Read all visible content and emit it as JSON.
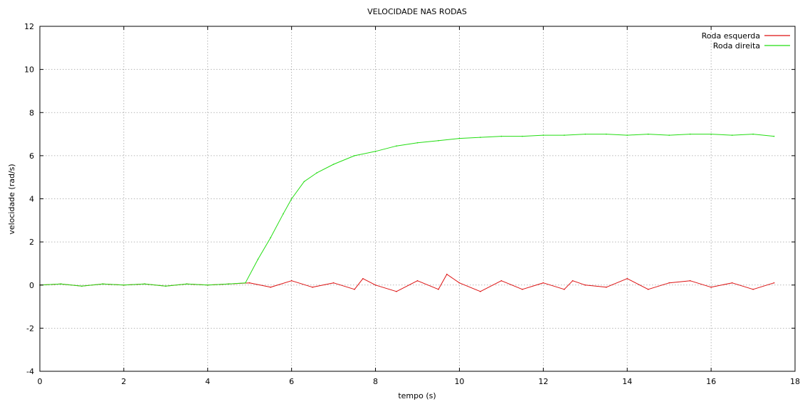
{
  "chart_data": {
    "type": "line",
    "title": "VELOCIDADE NAS RODAS",
    "xlabel": "tempo (s)",
    "ylabel": "velocidade (rad/s)",
    "xlim": [
      0,
      18
    ],
    "ylim": [
      -4,
      12
    ],
    "xticks": [
      0,
      2,
      4,
      6,
      8,
      10,
      12,
      14,
      16,
      18
    ],
    "yticks": [
      -4,
      -2,
      0,
      2,
      4,
      6,
      8,
      10,
      12
    ],
    "grid": true,
    "legend_position": "top-right",
    "series": [
      {
        "name": "Roda esquerda",
        "color": "#dd1111",
        "x": [
          0,
          0.5,
          1,
          1.5,
          2,
          2.5,
          3,
          3.5,
          4,
          4.5,
          5,
          5.5,
          6,
          6.5,
          7,
          7.5,
          7.7,
          8,
          8.5,
          9,
          9.5,
          9.7,
          10,
          10.5,
          11,
          11.5,
          12,
          12.5,
          12.7,
          13,
          13.5,
          14,
          14.5,
          15,
          15.5,
          16,
          16.5,
          17,
          17.5
        ],
        "y": [
          0,
          0.05,
          -0.05,
          0.05,
          0,
          0.05,
          -0.05,
          0.05,
          0,
          0.05,
          0.1,
          -0.1,
          0.2,
          -0.1,
          0.1,
          -0.2,
          0.3,
          0,
          -0.3,
          0.2,
          -0.2,
          0.5,
          0.1,
          -0.3,
          0.2,
          -0.2,
          0.1,
          -0.2,
          0.2,
          0,
          -0.1,
          0.3,
          -0.2,
          0.1,
          0.2,
          -0.1,
          0.1,
          -0.2,
          0.1
        ]
      },
      {
        "name": "Roda direita",
        "color": "#22dd11",
        "x": [
          0,
          0.5,
          1,
          1.5,
          2,
          2.5,
          3,
          3.5,
          4,
          4.5,
          4.9,
          5.2,
          5.5,
          5.8,
          6,
          6.3,
          6.6,
          7,
          7.5,
          8,
          8.5,
          9,
          9.5,
          10,
          10.5,
          11,
          11.5,
          12,
          12.5,
          13,
          13.5,
          14,
          14.5,
          15,
          15.5,
          16,
          16.5,
          17,
          17.5
        ],
        "y": [
          0,
          0.05,
          -0.05,
          0.05,
          0,
          0.05,
          -0.05,
          0.05,
          0,
          0.05,
          0.1,
          1.2,
          2.2,
          3.3,
          4.0,
          4.8,
          5.2,
          5.6,
          6.0,
          6.2,
          6.45,
          6.6,
          6.7,
          6.8,
          6.85,
          6.9,
          6.9,
          6.95,
          6.95,
          7.0,
          7.0,
          6.95,
          7.0,
          6.95,
          7.0,
          7.0,
          6.95,
          7.0,
          6.9
        ]
      }
    ]
  }
}
